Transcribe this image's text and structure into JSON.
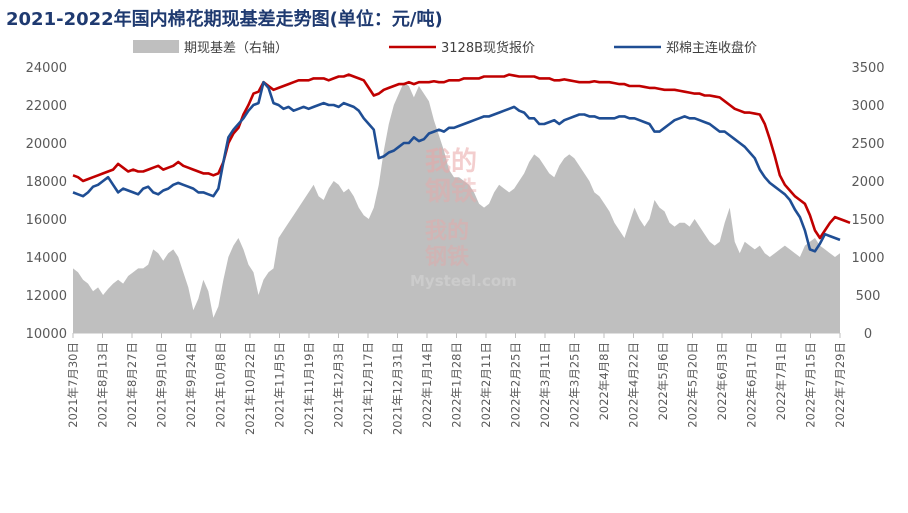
{
  "chart_data": {
    "type": "line+area",
    "title": "2021-2022年国内棉花期现基差走势图(单位：元/吨)",
    "watermark": {
      "line1": "我的",
      "line2": "钢铁",
      "site": "Mysteel.com"
    },
    "colors": {
      "title": "#1F3A70",
      "spot": "#C00000",
      "futures": "#1F4E94",
      "basis": "#BFBFBF",
      "axis": "#BFBFBF",
      "text": "#595959"
    },
    "left_axis": {
      "min": 10000,
      "max": 24000,
      "ticks": [
        10000,
        12000,
        14000,
        16000,
        18000,
        20000,
        22000,
        24000
      ]
    },
    "right_axis": {
      "min": 0,
      "max": 3500,
      "ticks": [
        0,
        500,
        1000,
        1500,
        2000,
        2500,
        3000,
        3500
      ]
    },
    "x_labels": [
      "2021年7月30日",
      "2021年8月13日",
      "2021年8月27日",
      "2021年9月10日",
      "2021年9月24日",
      "2021年10月8日",
      "2021年10月22日",
      "2021年11月5日",
      "2021年11月19日",
      "2021年12月3日",
      "2021年12月17日",
      "2021年12月31日",
      "2022年1月14日",
      "2022年1月28日",
      "2022年2月11日",
      "2022年2月25日",
      "2022年3月11日",
      "2022年3月25日",
      "2022年4月8日",
      "2022年4月22日",
      "2022年5月6日",
      "2022年5月20日",
      "2022年6月3日",
      "2022年6月17日",
      "2022年7月1日",
      "2022年7月15日",
      "2022年7月29日"
    ],
    "series": [
      {
        "name": "期现基差（右轴）",
        "type": "area",
        "axis": "right",
        "values": [
          850,
          800,
          700,
          650,
          550,
          600,
          500,
          580,
          650,
          700,
          650,
          750,
          800,
          850,
          850,
          900,
          1100,
          1050,
          950,
          1050,
          1100,
          1000,
          800,
          600,
          300,
          450,
          700,
          550,
          200,
          350,
          700,
          1000,
          1150,
          1250,
          1100,
          900,
          800,
          500,
          700,
          800,
          850,
          1250,
          1350,
          1450,
          1550,
          1650,
          1750,
          1850,
          1950,
          1800,
          1750,
          1900,
          2000,
          1950,
          1850,
          1900,
          1800,
          1650,
          1550,
          1500,
          1650,
          1950,
          2400,
          2750,
          3000,
          3150,
          3300,
          3250,
          3100,
          3250,
          3150,
          3050,
          2800,
          2600,
          2400,
          2150,
          2050,
          2050,
          2000,
          1950,
          1850,
          1700,
          1650,
          1700,
          1850,
          1950,
          1900,
          1850,
          1900,
          2000,
          2100,
          2250,
          2350,
          2300,
          2200,
          2100,
          2050,
          2200,
          2300,
          2350,
          2300,
          2200,
          2100,
          2000,
          1850,
          1800,
          1700,
          1600,
          1450,
          1350,
          1250,
          1450,
          1650,
          1500,
          1400,
          1500,
          1750,
          1650,
          1600,
          1450,
          1400,
          1450,
          1450,
          1400,
          1500,
          1400,
          1300,
          1200,
          1150,
          1200,
          1450,
          1650,
          1200,
          1050,
          1200,
          1150,
          1100,
          1150,
          1050,
          1000,
          1050,
          1100,
          1150,
          1100,
          1050,
          1000,
          1150,
          1200,
          1250,
          1150,
          1100,
          1050,
          1000,
          1050
        ]
      },
      {
        "name": "3128B现货报价",
        "type": "line",
        "axis": "left",
        "values": [
          18300,
          18200,
          18000,
          18100,
          18200,
          18300,
          18400,
          18500,
          18600,
          18900,
          18700,
          18500,
          18600,
          18500,
          18500,
          18600,
          18700,
          18800,
          18600,
          18700,
          18800,
          19000,
          18800,
          18700,
          18600,
          18500,
          18400,
          18400,
          18300,
          18400,
          19000,
          20000,
          20500,
          20800,
          21500,
          22000,
          22600,
          22700,
          23200,
          23000,
          22800,
          22900,
          23000,
          23100,
          23200,
          23300,
          23300,
          23300,
          23400,
          23400,
          23400,
          23300,
          23400,
          23500,
          23500,
          23600,
          23500,
          23400,
          23300,
          22900,
          22500,
          22600,
          22800,
          22900,
          23000,
          23100,
          23100,
          23200,
          23100,
          23200,
          23200,
          23200,
          23250,
          23200,
          23200,
          23300,
          23300,
          23300,
          23400,
          23400,
          23400,
          23400,
          23500,
          23500,
          23500,
          23500,
          23500,
          23600,
          23550,
          23500,
          23500,
          23500,
          23500,
          23400,
          23400,
          23400,
          23300,
          23300,
          23350,
          23300,
          23250,
          23200,
          23200,
          23200,
          23250,
          23200,
          23200,
          23200,
          23150,
          23100,
          23100,
          23000,
          23000,
          23000,
          22950,
          22900,
          22900,
          22850,
          22800,
          22800,
          22800,
          22750,
          22700,
          22650,
          22600,
          22600,
          22500,
          22500,
          22450,
          22400,
          22200,
          22000,
          21800,
          21700,
          21600,
          21600,
          21550,
          21500,
          21000,
          20200,
          19300,
          18300,
          17800,
          17500,
          17200,
          17000,
          16800,
          16200,
          15400,
          15000,
          15400,
          15800,
          16100,
          16000,
          15900,
          15800
        ]
      },
      {
        "name": "郑棉主连收盘价",
        "type": "line",
        "axis": "left",
        "values": [
          17400,
          17300,
          17200,
          17400,
          17700,
          17800,
          18000,
          18200,
          17800,
          17400,
          17600,
          17500,
          17400,
          17300,
          17600,
          17700,
          17400,
          17300,
          17500,
          17600,
          17800,
          17900,
          17800,
          17700,
          17600,
          17400,
          17400,
          17300,
          17200,
          17600,
          19000,
          20300,
          20700,
          21000,
          21300,
          21700,
          22000,
          22100,
          23200,
          22900,
          22100,
          22000,
          21800,
          21900,
          21700,
          21800,
          21900,
          21800,
          21900,
          22000,
          22100,
          22000,
          22000,
          21900,
          22100,
          22000,
          21900,
          21700,
          21300,
          21000,
          20700,
          19200,
          19300,
          19500,
          19600,
          19800,
          20000,
          20000,
          20300,
          20100,
          20200,
          20500,
          20600,
          20700,
          20600,
          20800,
          20800,
          20900,
          21000,
          21100,
          21200,
          21300,
          21400,
          21400,
          21500,
          21600,
          21700,
          21800,
          21900,
          21700,
          21600,
          21300,
          21300,
          21000,
          21000,
          21100,
          21200,
          21000,
          21200,
          21300,
          21400,
          21500,
          21500,
          21400,
          21400,
          21300,
          21300,
          21300,
          21300,
          21400,
          21400,
          21300,
          21300,
          21200,
          21100,
          21000,
          20600,
          20600,
          20800,
          21000,
          21200,
          21300,
          21400,
          21300,
          21300,
          21200,
          21100,
          21000,
          20800,
          20600,
          20600,
          20400,
          20200,
          20000,
          19800,
          19500,
          19200,
          18600,
          18200,
          17900,
          17700,
          17500,
          17300,
          17000,
          16500,
          16100,
          15400,
          14400,
          14300,
          14700,
          15200,
          15100,
          15000,
          14900
        ]
      }
    ]
  }
}
